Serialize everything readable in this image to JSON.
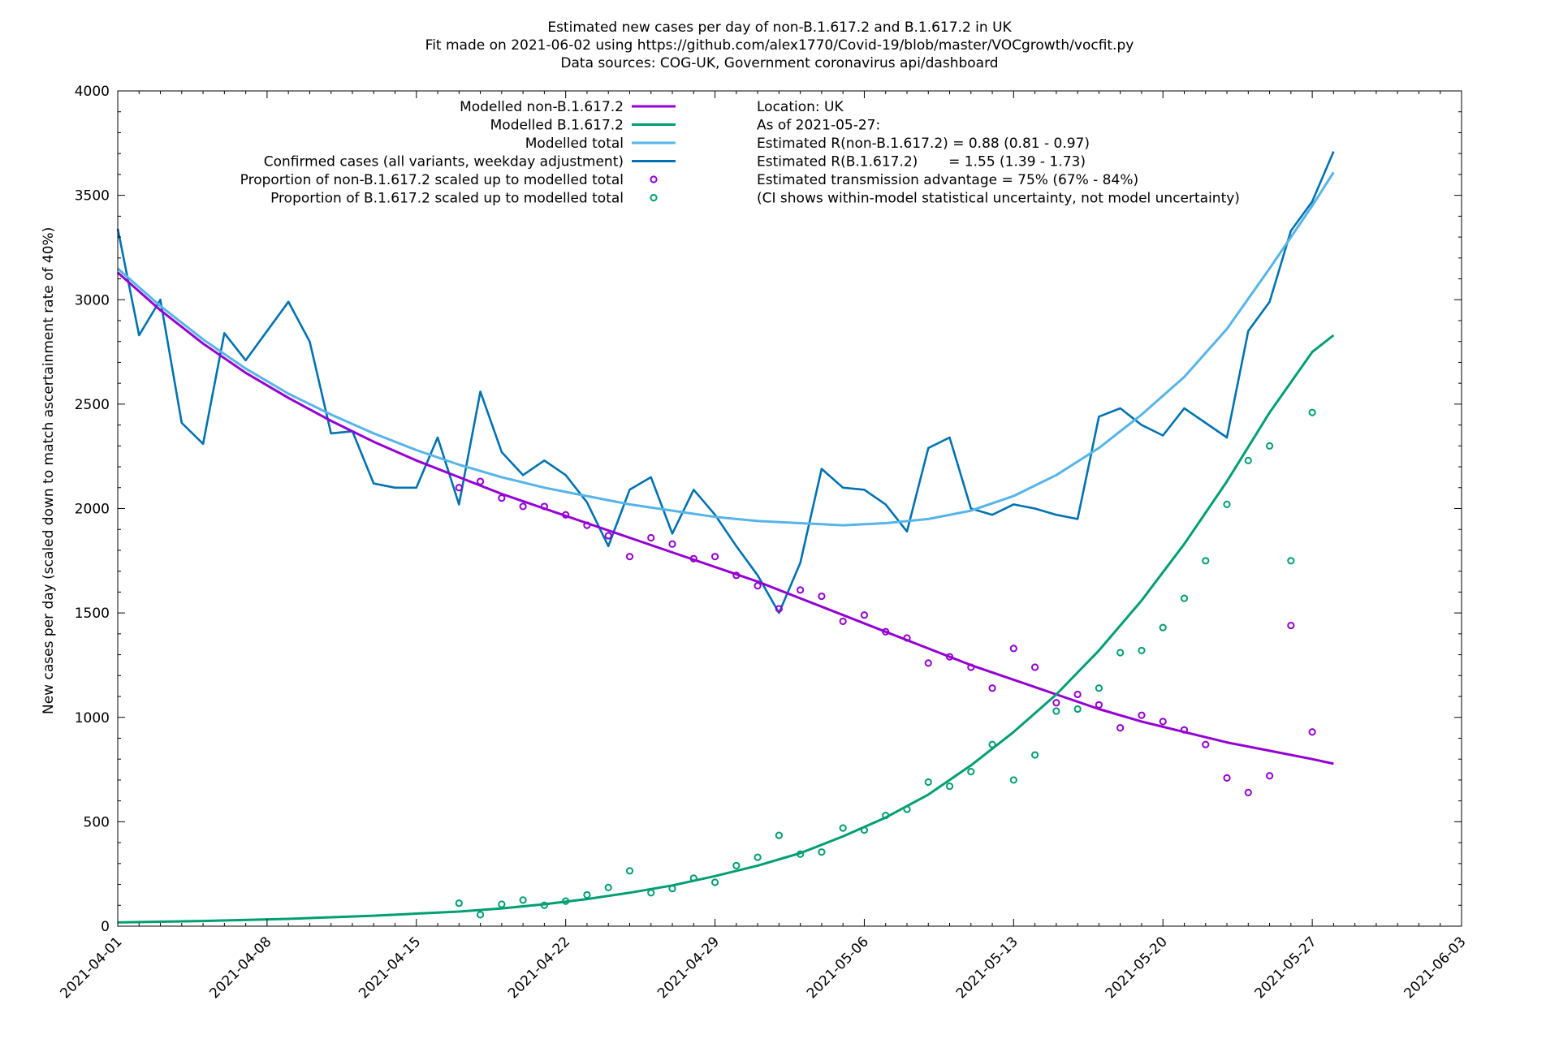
{
  "chart_data": {
    "type": "line",
    "title": [
      "Estimated new cases per day of non-B.1.617.2 and B.1.617.2 in UK",
      "Fit made on 2021-06-02 using https://github.com/alex1770/Covid-19/blob/master/VOCgrowth/vocfit.py",
      "Data sources: COG-UK, Government coronavirus api/dashboard"
    ],
    "xlabel": "",
    "ylabel": "New cases per day (scaled down to match ascertainment rate of 40%)",
    "x_start_date": "2021-04-01",
    "x_unit": "days since 2021-04-01",
    "xlim": [
      0,
      63
    ],
    "ylim": [
      0,
      4000
    ],
    "x_tick_labels": [
      "2021-04-01",
      "2021-04-08",
      "2021-04-15",
      "2021-04-22",
      "2021-04-29",
      "2021-05-06",
      "2021-05-13",
      "2021-05-20",
      "2021-05-27",
      "2021-06-03"
    ],
    "x_tick_days": [
      0,
      7,
      14,
      21,
      28,
      35,
      42,
      49,
      56,
      63
    ],
    "y_ticks": [
      0,
      500,
      1000,
      1500,
      2000,
      2500,
      3000,
      3500,
      4000
    ],
    "legend_position": "top-left",
    "series": [
      {
        "name": "Modelled non-B.1.617.2",
        "kind": "line",
        "color": "#9400d3",
        "x": [
          0,
          2,
          4,
          6,
          8,
          10,
          12,
          14,
          16,
          18,
          20,
          22,
          24,
          26,
          28,
          30,
          32,
          34,
          36,
          38,
          40,
          42,
          44,
          46,
          48,
          50,
          52,
          54,
          56,
          57
        ],
        "y": [
          3130,
          2950,
          2790,
          2650,
          2530,
          2420,
          2320,
          2230,
          2150,
          2070,
          2000,
          1930,
          1860,
          1790,
          1720,
          1650,
          1570,
          1490,
          1410,
          1330,
          1250,
          1180,
          1110,
          1040,
          980,
          930,
          880,
          840,
          800,
          778
        ]
      },
      {
        "name": "Modelled B.1.617.2",
        "kind": "line",
        "color": "#009e73",
        "x": [
          0,
          4,
          8,
          12,
          16,
          18,
          20,
          22,
          24,
          26,
          28,
          30,
          32,
          34,
          36,
          38,
          40,
          42,
          44,
          46,
          48,
          50,
          52,
          54,
          56,
          57
        ],
        "y": [
          18,
          25,
          35,
          50,
          70,
          85,
          105,
          130,
          160,
          195,
          240,
          290,
          350,
          430,
          520,
          630,
          770,
          930,
          1110,
          1320,
          1560,
          1830,
          2130,
          2460,
          2750,
          2830
        ]
      },
      {
        "name": "Modelled total",
        "kind": "line",
        "color": "#56b4e9",
        "x": [
          0,
          2,
          4,
          6,
          8,
          10,
          12,
          14,
          16,
          18,
          20,
          22,
          24,
          26,
          28,
          30,
          32,
          34,
          36,
          38,
          40,
          42,
          44,
          46,
          48,
          50,
          52,
          54,
          56,
          57
        ],
        "y": [
          3150,
          2970,
          2810,
          2670,
          2550,
          2450,
          2360,
          2280,
          2210,
          2150,
          2100,
          2060,
          2020,
          1990,
          1960,
          1940,
          1930,
          1920,
          1930,
          1950,
          1990,
          2060,
          2160,
          2290,
          2450,
          2630,
          2860,
          3150,
          3450,
          3610
        ]
      },
      {
        "name": "Confirmed cases (all variants, weekday adjustment)",
        "kind": "line",
        "color": "#0072b2",
        "x": [
          0,
          1,
          2,
          3,
          4,
          5,
          6,
          7,
          8,
          9,
          10,
          11,
          12,
          13,
          14,
          15,
          16,
          17,
          18,
          19,
          20,
          21,
          22,
          23,
          24,
          25,
          26,
          27,
          28,
          29,
          30,
          31,
          32,
          33,
          34,
          35,
          36,
          37,
          38,
          39,
          40,
          41,
          42,
          43,
          44,
          45,
          46,
          47,
          48,
          49,
          50,
          51,
          52,
          53,
          54,
          55,
          56,
          57
        ],
        "y": [
          3340,
          2830,
          3000,
          2410,
          2310,
          2840,
          2710,
          2850,
          2990,
          2800,
          2360,
          2370,
          2120,
          2100,
          2100,
          2340,
          2020,
          2560,
          2270,
          2160,
          2230,
          2160,
          2030,
          1820,
          2090,
          2150,
          1880,
          2090,
          1970,
          1820,
          1680,
          1500,
          1740,
          2190,
          2100,
          2090,
          2020,
          1890,
          2290,
          2340,
          2000,
          1970,
          2020,
          2000,
          1970,
          1950,
          2440,
          2480,
          2400,
          2350,
          2480,
          2410,
          2340,
          2850,
          2990,
          3330,
          3470,
          3710
        ]
      },
      {
        "name": "Proportion of non-B.1.617.2 scaled up to modelled total",
        "kind": "scatter",
        "color": "#9400d3",
        "x": [
          16,
          17,
          18,
          19,
          20,
          21,
          22,
          23,
          24,
          25,
          26,
          27,
          28,
          29,
          30,
          31,
          32,
          33,
          34,
          35,
          36,
          37,
          38,
          39,
          40,
          41,
          42,
          43,
          44,
          45,
          46,
          47,
          48,
          49,
          50,
          51,
          52,
          53,
          54,
          55,
          56
        ],
        "y": [
          2100,
          2130,
          2050,
          2010,
          2010,
          1970,
          1920,
          1870,
          1770,
          1860,
          1830,
          1760,
          1770,
          1680,
          1630,
          1520,
          1610,
          1580,
          1460,
          1490,
          1410,
          1380,
          1260,
          1290,
          1240,
          1140,
          1330,
          1240,
          1070,
          1110,
          1060,
          950,
          1010,
          980,
          940,
          870,
          710,
          640,
          720,
          1440,
          930
        ]
      },
      {
        "name": "Proportion of B.1.617.2 scaled up to modelled total",
        "kind": "scatter",
        "color": "#009e73",
        "x": [
          16,
          17,
          18,
          19,
          20,
          21,
          22,
          23,
          24,
          25,
          26,
          27,
          28,
          29,
          30,
          31,
          32,
          33,
          34,
          35,
          36,
          37,
          38,
          39,
          40,
          41,
          42,
          43,
          44,
          45,
          46,
          47,
          48,
          49,
          50,
          51,
          52,
          53,
          54,
          55,
          56
        ],
        "y": [
          110,
          55,
          105,
          125,
          100,
          120,
          150,
          185,
          265,
          160,
          180,
          230,
          210,
          290,
          330,
          435,
          345,
          355,
          470,
          460,
          530,
          560,
          690,
          670,
          740,
          870,
          700,
          820,
          1030,
          1040,
          1140,
          1310,
          1320,
          1430,
          1570,
          1750,
          2020,
          2230,
          2300,
          1750,
          2460
        ]
      }
    ],
    "annotations": [
      "Location: UK",
      "As of 2021-05-27:",
      "Estimated R(non-B.1.617.2) = 0.88 (0.81 - 0.97)",
      "Estimated R(B.1.617.2)       = 1.55 (1.39 - 1.73)",
      "Estimated transmission advantage = 75% (67% - 84%)",
      "(CI shows within-model statistical uncertainty, not model uncertainty)"
    ]
  }
}
